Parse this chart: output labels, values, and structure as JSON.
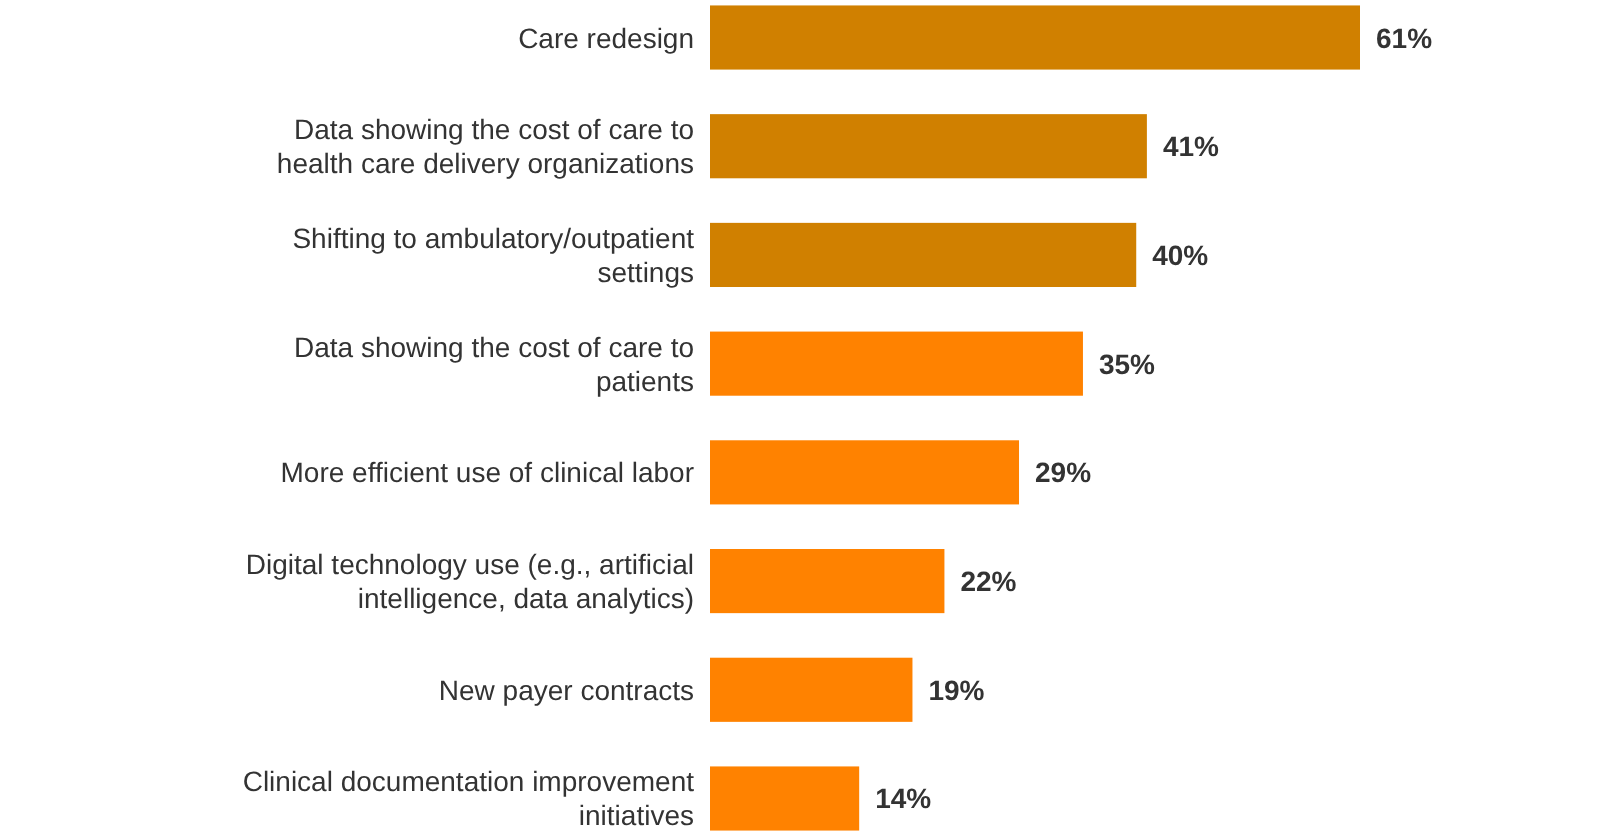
{
  "chart_data": {
    "type": "bar",
    "orientation": "horizontal",
    "relative": false,
    "categories": [
      "Care redesign",
      "Data showing the cost of care to health care delivery organizations",
      "Shifting to ambulatory/outpatient settings",
      "Data showing the cost of care to patients",
      "More efficient use of clinical labor",
      "Digital technology use (e.g., artificial intelligence, data analytics)",
      "New payer contracts",
      "Clinical documentation improvement initiatives"
    ],
    "values": [
      61,
      41,
      40,
      35,
      29,
      22,
      19,
      14
    ],
    "value_labels": [
      "61%",
      "41%",
      "40%",
      "35%",
      "29%",
      "22%",
      "19%",
      "14%"
    ],
    "colors": [
      "#d08000",
      "#d08000",
      "#d08000",
      "#ff8200",
      "#ff8200",
      "#ff8200",
      "#ff8200",
      "#ff8200"
    ]
  }
}
